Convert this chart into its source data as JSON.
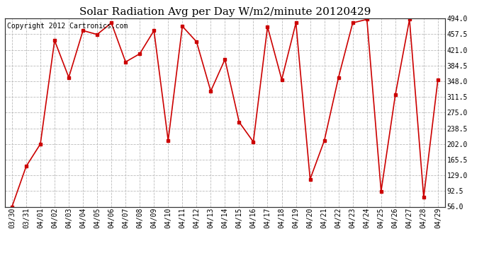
{
  "title": "Solar Radiation Avg per Day W/m2/minute 20120429",
  "copyright_text": "Copyright 2012 Cartronics.com",
  "labels": [
    "03/30",
    "03/31",
    "04/01",
    "04/02",
    "04/03",
    "04/04",
    "04/05",
    "04/06",
    "04/07",
    "04/08",
    "04/09",
    "04/10",
    "04/11",
    "04/12",
    "04/13",
    "04/14",
    "04/15",
    "04/16",
    "04/17",
    "04/18",
    "04/19",
    "04/20",
    "04/21",
    "04/22",
    "04/23",
    "04/24",
    "04/25",
    "04/26",
    "04/27",
    "04/28",
    "04/29"
  ],
  "values": [
    56,
    150,
    202,
    443,
    357,
    466,
    457,
    484,
    393,
    412,
    466,
    210,
    476,
    440,
    325,
    399,
    253,
    207,
    475,
    352,
    484,
    120,
    210,
    357,
    484,
    492,
    92,
    316,
    492,
    78,
    352
  ],
  "line_color": "#cc0000",
  "marker_color": "#cc0000",
  "bg_color": "#ffffff",
  "plot_bg_color": "#ffffff",
  "grid_color": "#bbbbbb",
  "title_fontsize": 11,
  "copyright_fontsize": 7,
  "tick_fontsize": 7,
  "ytick_values": [
    56.0,
    92.5,
    129.0,
    165.5,
    202.0,
    238.5,
    275.0,
    311.5,
    348.0,
    384.5,
    421.0,
    457.5,
    494.0
  ],
  "ylim": [
    56.0,
    494.0
  ]
}
